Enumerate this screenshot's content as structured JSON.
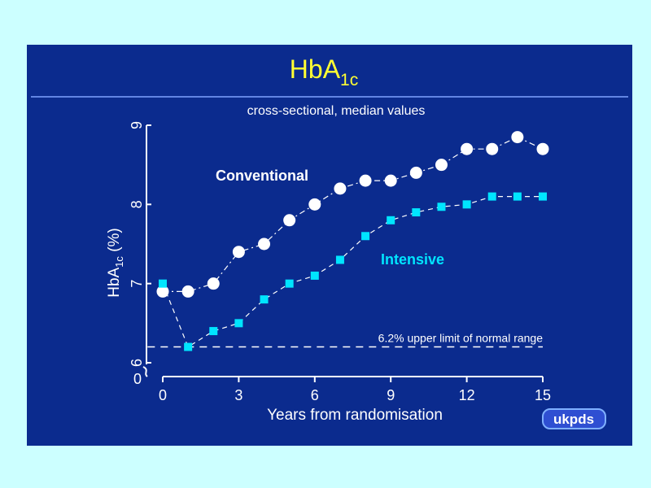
{
  "colors": {
    "page_bg": "#ccffff",
    "slide_bg": "#0b2b8e",
    "title": "#ffff33",
    "conventional": "#ffffff",
    "intensive": "#00e5ff",
    "text": "#ffffff"
  },
  "title": {
    "main": "HbA",
    "sub": "1c"
  },
  "logo": "ukpds",
  "chart_data": {
    "type": "line",
    "subtitle": "cross-sectional, median values",
    "xlabel": "Years from randomisation",
    "ylabel": {
      "main": "HbA",
      "sub": "1c",
      "unit": " (%)"
    },
    "xlim": [
      0,
      15
    ],
    "ylim": [
      6,
      9
    ],
    "y_break": true,
    "x_ticks": [
      0,
      3,
      6,
      9,
      12,
      15
    ],
    "y_ticks": [
      {
        "value": 6,
        "label": "6"
      },
      {
        "value": 7,
        "label": "7"
      },
      {
        "value": 8,
        "label": "8"
      },
      {
        "value": 9,
        "label": "9"
      }
    ],
    "y_zero_label": "0",
    "x": [
      0,
      1,
      2,
      3,
      4,
      5,
      6,
      7,
      8,
      9,
      10,
      11,
      12,
      13,
      14,
      15
    ],
    "series": [
      {
        "name": "Conventional",
        "marker": "circle",
        "values": [
          6.9,
          6.9,
          7.0,
          7.4,
          7.5,
          7.8,
          8.0,
          8.2,
          8.3,
          8.3,
          8.4,
          8.5,
          8.7,
          8.7,
          8.85,
          8.7
        ]
      },
      {
        "name": "Intensive",
        "marker": "square",
        "values": [
          7.0,
          6.2,
          6.4,
          6.5,
          6.8,
          7.0,
          7.1,
          7.3,
          7.6,
          7.8,
          7.9,
          7.97,
          8.0,
          8.1,
          8.1,
          8.1
        ]
      }
    ],
    "reference_line": {
      "value": 6.2,
      "label": "6.2% upper limit of normal range"
    }
  }
}
